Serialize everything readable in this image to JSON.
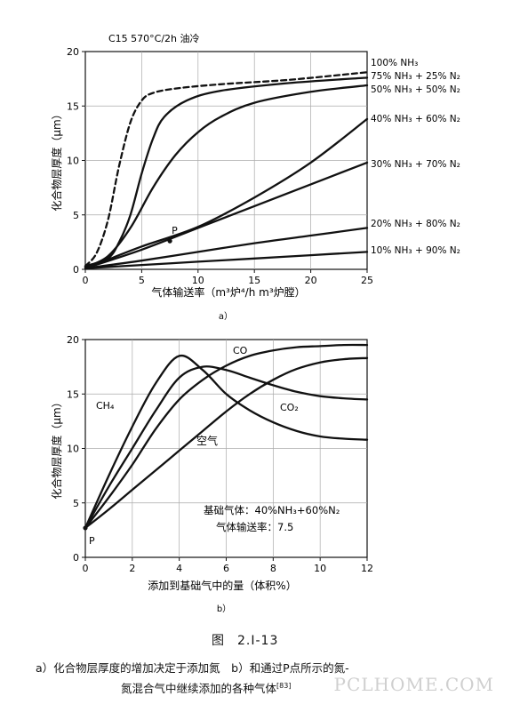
{
  "chart_data": [
    {
      "type": "line",
      "panel_label": "a）",
      "title": "C15 570°C/2h 油冷",
      "xlabel": "气体输送率（m³炉⁴/h m³炉膛）",
      "ylabel": "化合物层厚度（μm）",
      "xlim": [
        0,
        25
      ],
      "ylim": [
        0,
        20
      ],
      "xticks": [
        "0",
        "5",
        "10",
        "15",
        "20",
        "25"
      ],
      "yticks": [
        "0",
        "5",
        "10",
        "15",
        "20"
      ],
      "point_label": "P",
      "point": {
        "x": 7.5,
        "y": 2.6
      },
      "series": [
        {
          "name": "100% NH₃",
          "dashed": true,
          "x": [
            0,
            1,
            2,
            3,
            4,
            5,
            6,
            8,
            12,
            18,
            25
          ],
          "y": [
            0.3,
            1.5,
            4.5,
            9.5,
            13.5,
            15.5,
            16.2,
            16.6,
            17.0,
            17.4,
            18.1
          ]
        },
        {
          "name": "75% NH₃ + 25% N₂",
          "dashed": false,
          "x": [
            0,
            2,
            3,
            4,
            5,
            6,
            7,
            9,
            12,
            18,
            25
          ],
          "y": [
            0.3,
            1.0,
            2.5,
            5.0,
            8.8,
            12.0,
            14.0,
            15.5,
            16.4,
            17.1,
            17.6
          ]
        },
        {
          "name": "50% NH₃ + 50% N₂",
          "dashed": false,
          "x": [
            0,
            2,
            4,
            6,
            8,
            10,
            12,
            15,
            20,
            25
          ],
          "y": [
            0.2,
            1.2,
            3.8,
            7.5,
            10.5,
            12.6,
            14.0,
            15.3,
            16.3,
            16.9
          ]
        },
        {
          "name": "40% NH₃ + 60% N₂",
          "dashed": false,
          "x": [
            0,
            2,
            5,
            10,
            15,
            20,
            25
          ],
          "y": [
            0.2,
            0.9,
            2.1,
            3.9,
            6.6,
            9.8,
            13.8
          ]
        },
        {
          "name": "30% NH₃ + 70% N₂",
          "dashed": false,
          "x": [
            0,
            5,
            10,
            15,
            20,
            25
          ],
          "y": [
            0.1,
            1.8,
            3.8,
            5.8,
            7.8,
            9.8
          ]
        },
        {
          "name": "20% NH₃ + 80% N₂",
          "dashed": false,
          "x": [
            0,
            5,
            10,
            15,
            20,
            25
          ],
          "y": [
            0.1,
            0.8,
            1.6,
            2.4,
            3.1,
            3.8
          ]
        },
        {
          "name": "10% NH₃ + 90% N₂",
          "dashed": false,
          "x": [
            0,
            5,
            10,
            15,
            20,
            25
          ],
          "y": [
            0.1,
            0.4,
            0.7,
            1.0,
            1.3,
            1.6
          ]
        }
      ]
    },
    {
      "type": "line",
      "panel_label": "b）",
      "xlabel": "添加到基础气中的量（体积%）",
      "ylabel": "化合物层厚度（μm）",
      "xlim": [
        0,
        12
      ],
      "ylim": [
        0,
        20
      ],
      "xticks": [
        "0",
        "2",
        "4",
        "6",
        "8",
        "10",
        "12"
      ],
      "yticks": [
        "0",
        "5",
        "10",
        "15",
        "20"
      ],
      "point_label": "P",
      "point": {
        "x": 0,
        "y": 2.7
      },
      "annotation_lines": [
        "基础气体：40%NH₃+60%N₂",
        "气体输送率：7.5"
      ],
      "series": [
        {
          "name": "CH₄",
          "x": [
            0,
            1,
            2,
            3,
            4,
            5,
            6,
            7,
            8,
            9,
            10,
            11,
            12
          ],
          "y": [
            2.7,
            7.5,
            12.0,
            16.0,
            18.5,
            17.2,
            15.0,
            13.5,
            12.4,
            11.6,
            11.1,
            10.9,
            10.8
          ]
        },
        {
          "name": "CO",
          "x": [
            0,
            1,
            2,
            3,
            4,
            5,
            6,
            7,
            8,
            9,
            10,
            11,
            12
          ],
          "y": [
            2.7,
            5.5,
            8.5,
            11.8,
            14.5,
            16.3,
            17.6,
            18.5,
            19.0,
            19.3,
            19.4,
            19.5,
            19.5
          ]
        },
        {
          "name": "CO₂",
          "x": [
            0,
            1,
            2,
            3,
            4,
            5,
            6,
            7,
            8,
            9,
            10,
            11,
            12
          ],
          "y": [
            2.7,
            6.5,
            10.0,
            13.5,
            16.5,
            17.5,
            17.2,
            16.5,
            15.8,
            15.2,
            14.8,
            14.6,
            14.5
          ]
        },
        {
          "name": "空气",
          "x": [
            0,
            1,
            2,
            3,
            4,
            5,
            6,
            7,
            8,
            9,
            10,
            11,
            12
          ],
          "y": [
            2.7,
            4.4,
            6.2,
            8.0,
            9.8,
            11.6,
            13.4,
            15.0,
            16.3,
            17.3,
            17.9,
            18.2,
            18.3
          ]
        }
      ]
    }
  ],
  "figure": {
    "title": "图",
    "number": "2.I-13",
    "caption_line1": "a）化合物层厚度的增加决定于添加氮　b）和通过P点所示的氮-",
    "caption_line2": "氮混合气中继续添加的各种气体",
    "reference": "[83]"
  },
  "watermark": "PCLHOME.COM"
}
